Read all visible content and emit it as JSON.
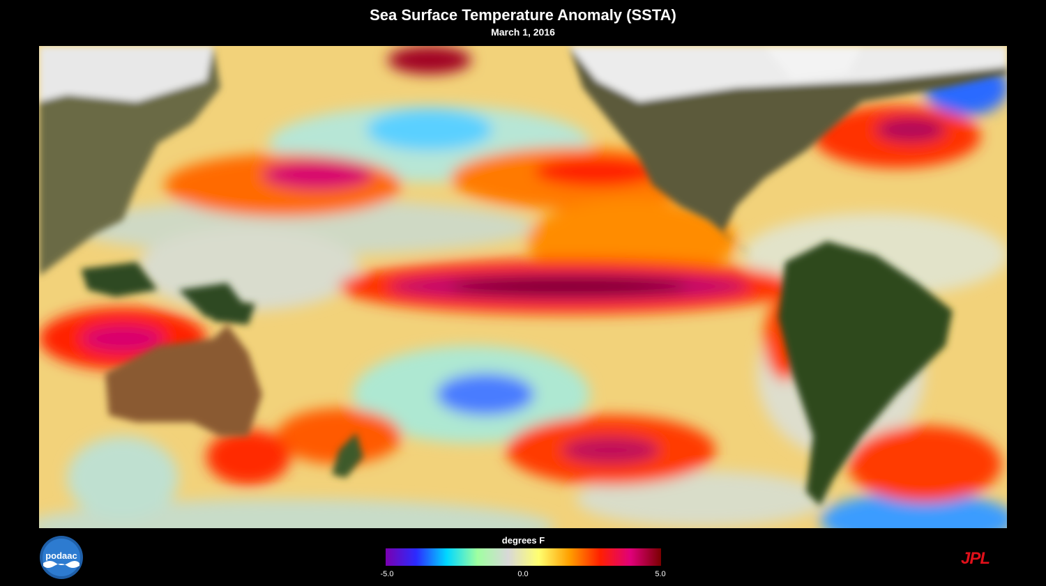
{
  "title": "Sea Surface Temperature Anomaly (SSTA)",
  "date": "March 1, 2016",
  "map": {
    "regions_depicted": [
      "Asia",
      "Australia",
      "North America",
      "South America",
      "New Zealand",
      "Pacific Ocean",
      "Atlantic Ocean"
    ]
  },
  "colorbar": {
    "label": "degrees F",
    "min_label": "-5.0",
    "mid_label": "0.0",
    "max_label": "5.0",
    "stops": [
      "#7a00b0",
      "#2b2bff",
      "#00d8ff",
      "#9fffa0",
      "#d8d8d8",
      "#ffff70",
      "#ffa000",
      "#ff2000",
      "#e0007a",
      "#7a0000"
    ]
  },
  "logos": {
    "left": "podaac",
    "right": "JPL"
  },
  "colors": {
    "background": "#000000",
    "jpl_red": "#e0101a",
    "land": "#4a5a2a",
    "ice": "#f0f0f0"
  }
}
